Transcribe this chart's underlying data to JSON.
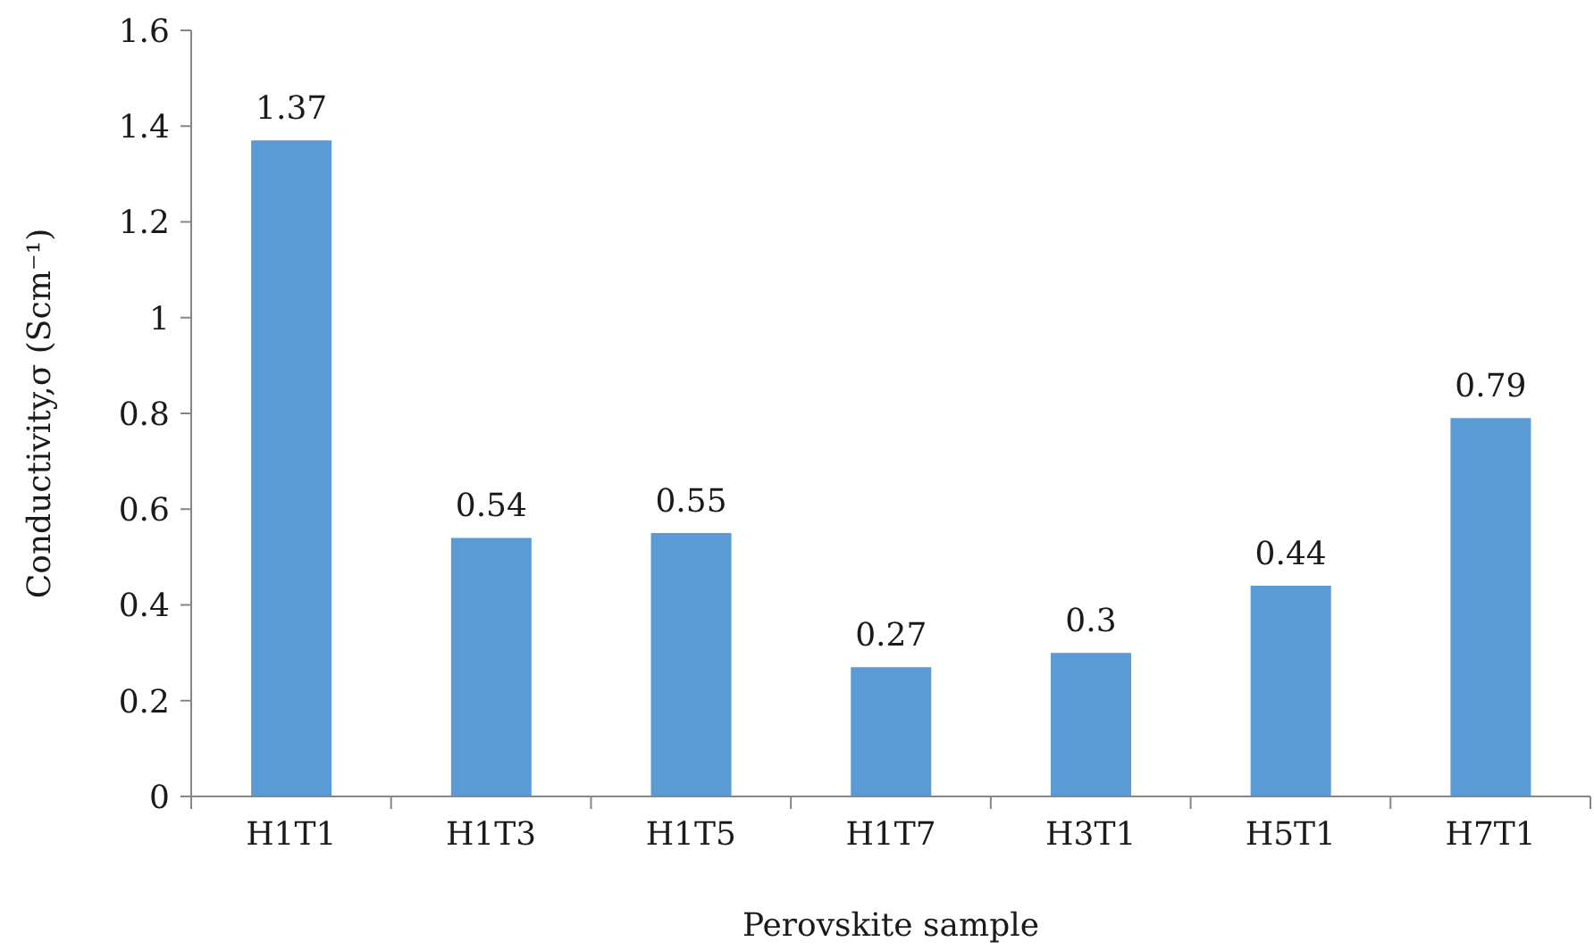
{
  "chart_data": {
    "type": "bar",
    "xlabel": "Perovskite sample",
    "ylabel": "Conductivity,σ (Scm⁻¹)",
    "categories": [
      "H1T1",
      "H1T3",
      "H1T5",
      "H1T7",
      "H3T1",
      "H5T1",
      "H7T1"
    ],
    "values": [
      1.37,
      0.54,
      0.55,
      0.27,
      0.3,
      0.44,
      0.79
    ],
    "color": "#5b9bd5",
    "ylim": [
      0,
      1.6
    ],
    "yticks": [
      0,
      0.2,
      0.4,
      0.6,
      0.8,
      1,
      1.2,
      1.4,
      1.6
    ],
    "data_labels": true
  }
}
